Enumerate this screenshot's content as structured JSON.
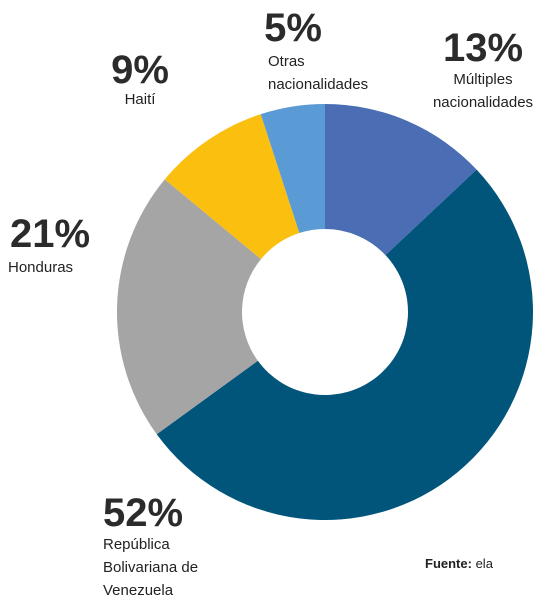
{
  "chart_data": {
    "type": "donut",
    "categories": [
      "Múltiples nacionalidades",
      "República Bolivariana de Venezuela",
      "Honduras",
      "Haití",
      "Otras nacionalidades"
    ],
    "values": [
      13,
      52,
      21,
      9,
      5
    ],
    "value_labels": [
      "13%",
      "52%",
      "21%",
      "9%",
      "5%"
    ],
    "colors": [
      "#4a6db3",
      "#02557a",
      "#a5a5a5",
      "#fbbf10",
      "#5b9bd5"
    ]
  },
  "source": {
    "label": "Fuente:",
    "text": "ela"
  }
}
